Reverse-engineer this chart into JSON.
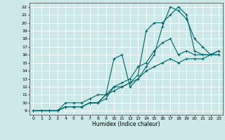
{
  "title": "",
  "xlabel": "Humidex (Indice chaleur)",
  "ylabel": "",
  "xlim": [
    -0.5,
    23.5
  ],
  "ylim": [
    8.5,
    22.5
  ],
  "xticks": [
    0,
    1,
    2,
    3,
    4,
    5,
    6,
    7,
    8,
    9,
    10,
    11,
    12,
    13,
    14,
    15,
    16,
    17,
    18,
    19,
    20,
    21,
    22,
    23
  ],
  "yticks": [
    9,
    10,
    11,
    12,
    13,
    14,
    15,
    16,
    17,
    18,
    19,
    20,
    21,
    22
  ],
  "bg_color": "#cce8e8",
  "grid_color": "#ffffff",
  "line_color": "#006666",
  "lines": [
    [
      9.0,
      9.0,
      9.0,
      9.0,
      10.0,
      10.0,
      10.0,
      10.5,
      11.0,
      11.0,
      15.5,
      16.0,
      12.0,
      13.0,
      14.5,
      16.0,
      19.5,
      22.0,
      21.5,
      20.5,
      18.0,
      17.0,
      16.0,
      16.5
    ],
    [
      9.0,
      9.0,
      9.0,
      9.0,
      9.5,
      9.5,
      9.5,
      10.0,
      10.0,
      10.5,
      12.0,
      12.0,
      12.5,
      13.5,
      19.0,
      20.0,
      20.0,
      21.0,
      22.0,
      21.0,
      16.5,
      16.0,
      16.0,
      16.0
    ],
    [
      9.0,
      9.0,
      9.0,
      9.0,
      9.5,
      9.5,
      9.5,
      10.0,
      10.0,
      11.0,
      12.0,
      12.5,
      13.0,
      14.5,
      15.0,
      16.5,
      17.5,
      18.0,
      16.0,
      16.5,
      16.0,
      16.0,
      16.0,
      16.5
    ],
    [
      9.0,
      9.0,
      9.0,
      9.0,
      9.5,
      9.5,
      9.5,
      10.0,
      10.0,
      11.0,
      11.5,
      12.0,
      12.5,
      13.0,
      14.0,
      14.5,
      15.0,
      15.5,
      15.0,
      15.5,
      15.5,
      15.5,
      16.0,
      16.0
    ]
  ],
  "xlabel_fontsize": 5.5,
  "tick_fontsize": 4.5
}
